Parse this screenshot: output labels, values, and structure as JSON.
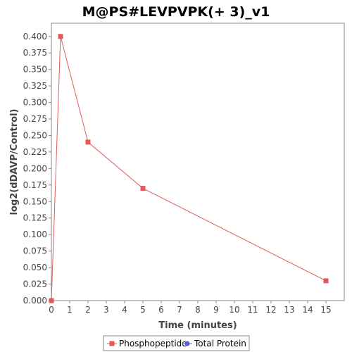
{
  "chart_data": {
    "type": "line",
    "title": "M@PS#LEVPVPK(+ 3)_v1",
    "xlabel": "Time (minutes)",
    "ylabel": "log2(dDAVP/Control)",
    "xlim": [
      0,
      16
    ],
    "ylim": [
      0,
      0.42
    ],
    "x_ticks": [
      0,
      1,
      2,
      3,
      4,
      5,
      6,
      7,
      8,
      9,
      10,
      11,
      12,
      13,
      14,
      15
    ],
    "y_ticks": [
      0,
      0.025,
      0.05,
      0.075,
      0.1,
      0.125,
      0.15,
      0.175,
      0.2,
      0.225,
      0.25,
      0.275,
      0.3,
      0.325,
      0.35,
      0.375,
      0.4
    ],
    "y_tick_labels": [
      "0.000",
      "0.025",
      "0.050",
      "0.075",
      "0.100",
      "0.125",
      "0.150",
      "0.175",
      "0.200",
      "0.225",
      "0.250",
      "0.275",
      "0.300",
      "0.325",
      "0.350",
      "0.375",
      "0.400"
    ],
    "grid": false,
    "legend_position": "bottom-center",
    "series": [
      {
        "name": "Phosphopeptide",
        "color": "#e05a5a",
        "marker": "square",
        "x": [
          0,
          0.5,
          2,
          5,
          15
        ],
        "y": [
          0,
          0.4,
          0.24,
          0.17,
          0.03
        ]
      },
      {
        "name": "Total Protein",
        "color": "#5a5ae0",
        "marker": "circle",
        "x": [],
        "y": []
      }
    ]
  }
}
